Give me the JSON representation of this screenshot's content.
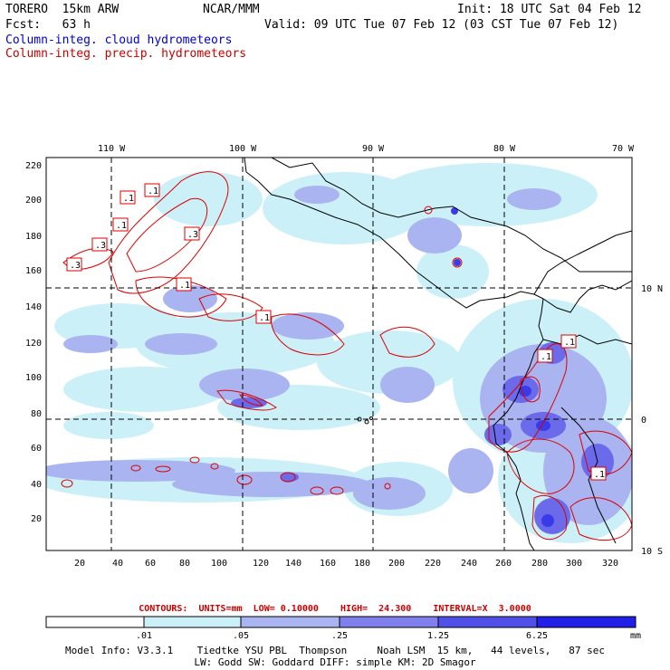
{
  "header": {
    "model": "TORERO",
    "resolution": "15km ARW",
    "org": "NCAR/MMM",
    "init": "Init: 18 UTC Sat 04 Feb 12",
    "fcst_label": "Fcst:",
    "fcst_value": "63 h",
    "valid": "Valid: 09 UTC Tue 07 Feb 12 (03 CST Tue 07 Feb 12)",
    "field1": "Column-integ. cloud hydrometeors",
    "field2": "Column-integ. precip. hydrometeors"
  },
  "colors": {
    "field1": "#0000cc",
    "field2": "#cc0000",
    "grid": "#000000",
    "precip_contour": "#dd0000"
  },
  "map": {
    "top_lon_labels": [
      "110 W",
      "100 W",
      "90 W",
      "80 W",
      "70 W"
    ],
    "right_lat_labels": [
      "10 N",
      "0",
      "10 S"
    ],
    "x_ticks": [
      "20",
      "40",
      "60",
      "80",
      "100",
      "120",
      "140",
      "160",
      "180",
      "200",
      "220",
      "240",
      "260",
      "280",
      "300",
      "320"
    ],
    "y_ticks": [
      "220",
      "200",
      "180",
      "160",
      "140",
      "120",
      "100",
      "80",
      "60",
      "40",
      "20"
    ],
    "contour_labels": [
      ".1",
      ".1",
      ".1",
      ".3",
      ".3",
      ".3",
      ".1",
      ".1",
      ".1",
      ".1",
      ".1"
    ]
  },
  "contours_text": {
    "units": "CONTOURS:  UNITS=mm  LOW= 0.10000",
    "high": "HIGH=  24.300",
    "interval": "INTERVAL=X  3.0000"
  },
  "colorbar": {
    "labels": [
      ".01",
      ".05",
      ".25",
      "1.25",
      "6.25"
    ],
    "unit": "mm",
    "colors": [
      "#ffffff",
      "#ccf0f8",
      "#aab4f0",
      "#8080ec",
      "#5050e8",
      "#2020e8"
    ]
  },
  "model_info": {
    "line1": "Model Info: V3.3.1    Tiedtke YSU PBL  Thompson     Noah LSM  15 km,   44 levels,   87 sec",
    "line2": "LW: Godd SW: Goddard DIFF: simple KM: 2D Smagor"
  }
}
